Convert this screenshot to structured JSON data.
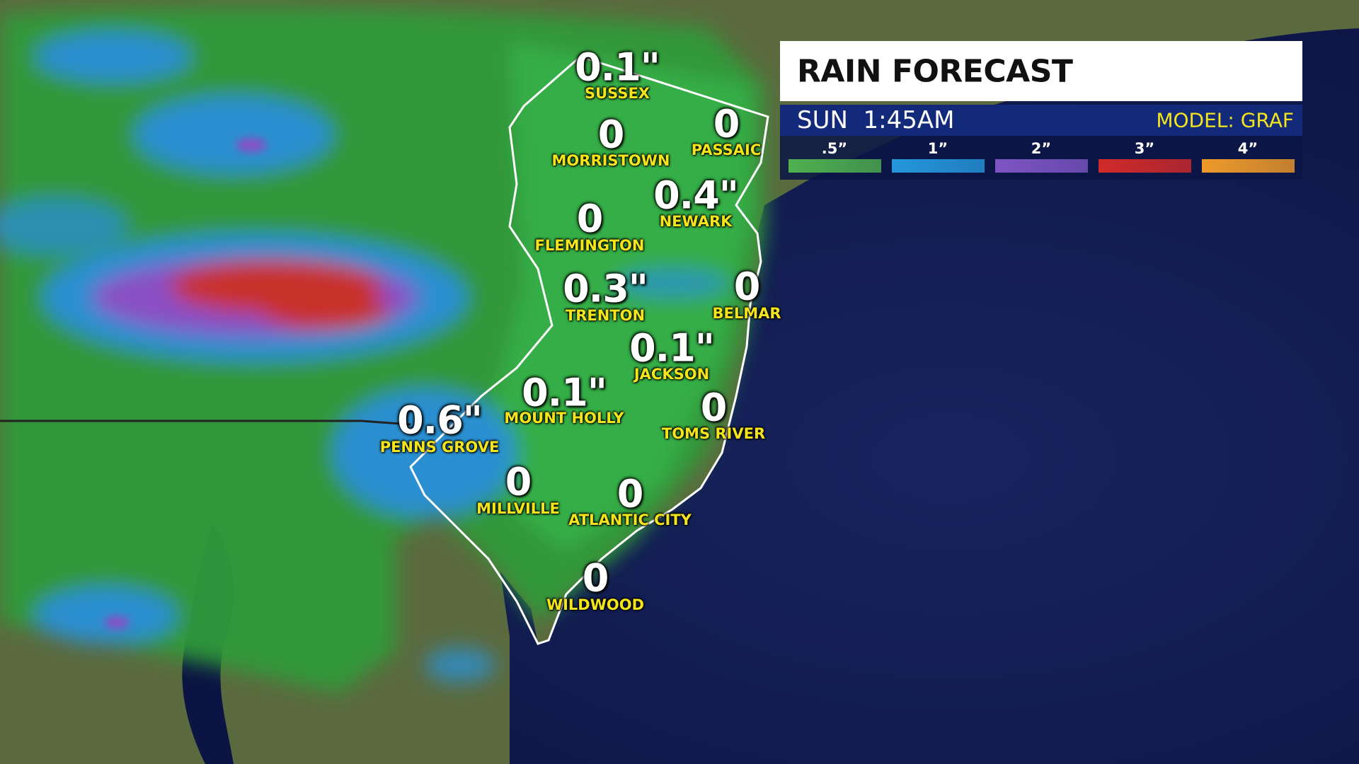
{
  "header": {
    "title": "RAIN FORECAST",
    "time": "SUN  1:45AM",
    "model": "MODEL: GRAF"
  },
  "legend": [
    {
      "label": ".5”",
      "color": "#4fb04f"
    },
    {
      "label": "1”",
      "color": "#2597dc"
    },
    {
      "label": "2”",
      "color": "#7d55c4"
    },
    {
      "label": "3”",
      "color": "#d12a2a"
    },
    {
      "label": "4”",
      "color": "#ee9a2a"
    }
  ],
  "locations": [
    {
      "value": "0.1\"",
      "name": "SUSSEX"
    },
    {
      "value": "0",
      "name": "MORRISTOWN"
    },
    {
      "value": "0",
      "name": "PASSAIC"
    },
    {
      "value": "0.4\"",
      "name": "NEWARK"
    },
    {
      "value": "0",
      "name": "FLEMINGTON"
    },
    {
      "value": "0.3\"",
      "name": "TRENTON"
    },
    {
      "value": "0",
      "name": "BELMAR"
    },
    {
      "value": "0.1\"",
      "name": "JACKSON"
    },
    {
      "value": "0.1\"",
      "name": "MOUNT HOLLY"
    },
    {
      "value": "0",
      "name": "TOMS RIVER"
    },
    {
      "value": "0.6\"",
      "name": "PENNS GROVE"
    },
    {
      "value": "0",
      "name": "MILLVILLE"
    },
    {
      "value": "0",
      "name": "ATLANTIC CITY"
    },
    {
      "value": "0",
      "name": "WILDWOOD"
    }
  ]
}
